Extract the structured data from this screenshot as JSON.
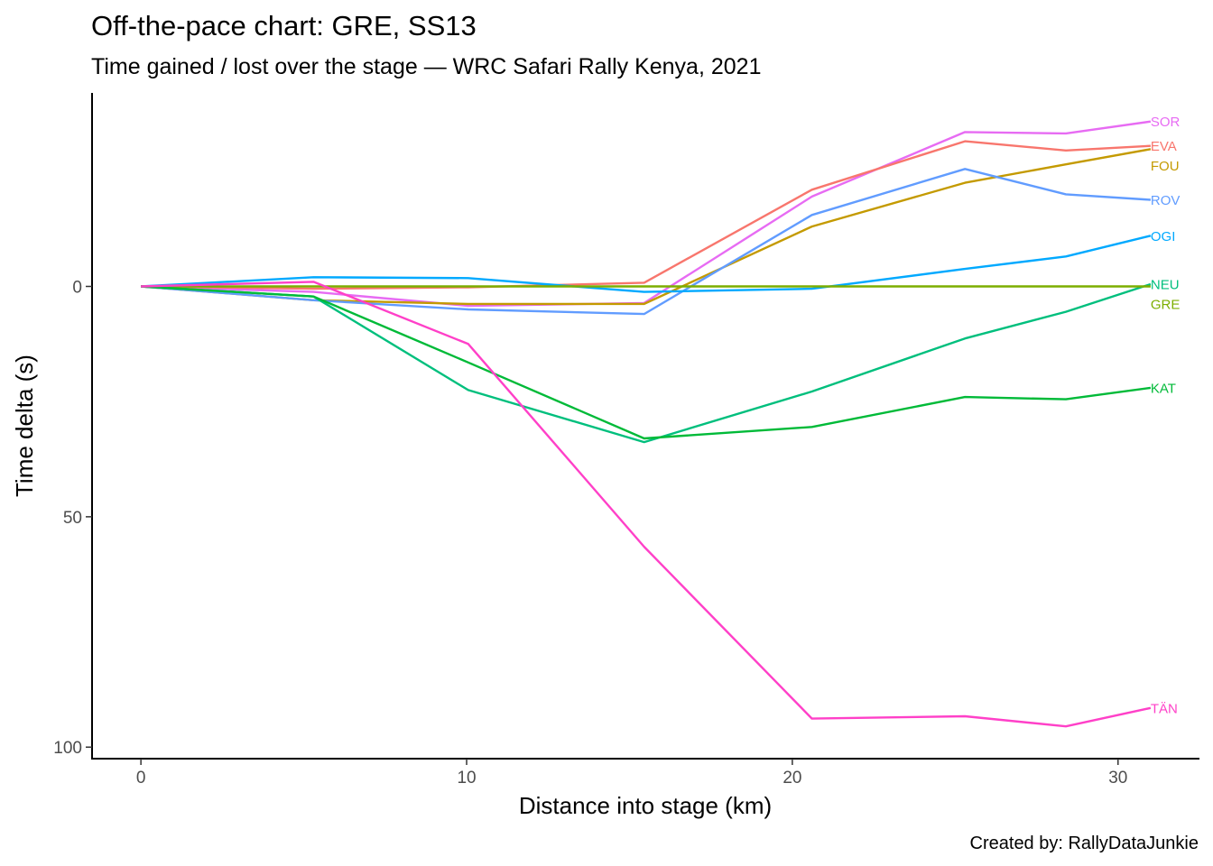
{
  "chart_data": {
    "type": "line",
    "title": "Off-the-pace chart: GRE, SS13",
    "subtitle": "Time gained / lost over the stage — WRC Safari Rally Kenya, 2021",
    "xlabel": "Distance into stage (km)",
    "ylabel": "Time delta (s)",
    "caption": "Created by: RallyDataJunkie",
    "y_reversed": true,
    "xlim": [
      -1.5,
      32.5
    ],
    "ylim": [
      -42,
      102.5
    ],
    "x_ticks": [
      0,
      10,
      20,
      30
    ],
    "x_tick_labels": [
      "0",
      "10",
      "20",
      "30"
    ],
    "y_ticks": [
      0,
      50,
      100
    ],
    "y_tick_labels": [
      "0",
      "50",
      "100"
    ],
    "grid": false,
    "x": [
      0,
      5.3,
      10.05,
      15.45,
      20.6,
      25.3,
      28.4,
      31
    ],
    "series": [
      {
        "name": "SOR",
        "color": "#e76bf3",
        "values": [
          0,
          1.2,
          4.2,
          3.6,
          -19.5,
          -33.5,
          -33.2,
          -35.8
        ]
      },
      {
        "name": "EVA",
        "color": "#f8766d",
        "values": [
          0,
          0.5,
          0.2,
          -0.8,
          -21,
          -31.5,
          -29.5,
          -30.5
        ]
      },
      {
        "name": "FOU",
        "color": "#c49a00",
        "values": [
          0,
          3,
          3.8,
          3.8,
          -13,
          -22.5,
          -26.5,
          -29.8
        ]
      },
      {
        "name": "ROV",
        "color": "#619cff",
        "values": [
          0,
          3,
          5,
          6,
          -15.5,
          -25.5,
          -20,
          -18.8
        ]
      },
      {
        "name": "OGI",
        "color": "#00a9ff",
        "values": [
          0,
          -2,
          -1.8,
          1.2,
          0.5,
          -3.8,
          -6.5,
          -11
        ]
      },
      {
        "name": "NEU",
        "color": "#00bf7d",
        "values": [
          0,
          2.2,
          22.5,
          33.8,
          22.8,
          11.3,
          5.5,
          -0.5
        ]
      },
      {
        "name": "GRE",
        "color": "#7cae00",
        "values": [
          0,
          0,
          0,
          0,
          0,
          0,
          0,
          0
        ]
      },
      {
        "name": "KAT",
        "color": "#00ba38",
        "values": [
          0,
          2.2,
          16.5,
          33,
          30.5,
          24,
          24.5,
          22
        ]
      },
      {
        "name": "TÄN",
        "color": "#ff40c8",
        "values": [
          0,
          -1,
          12.5,
          56.5,
          93.8,
          93.3,
          95.5,
          91.5
        ]
      }
    ]
  }
}
